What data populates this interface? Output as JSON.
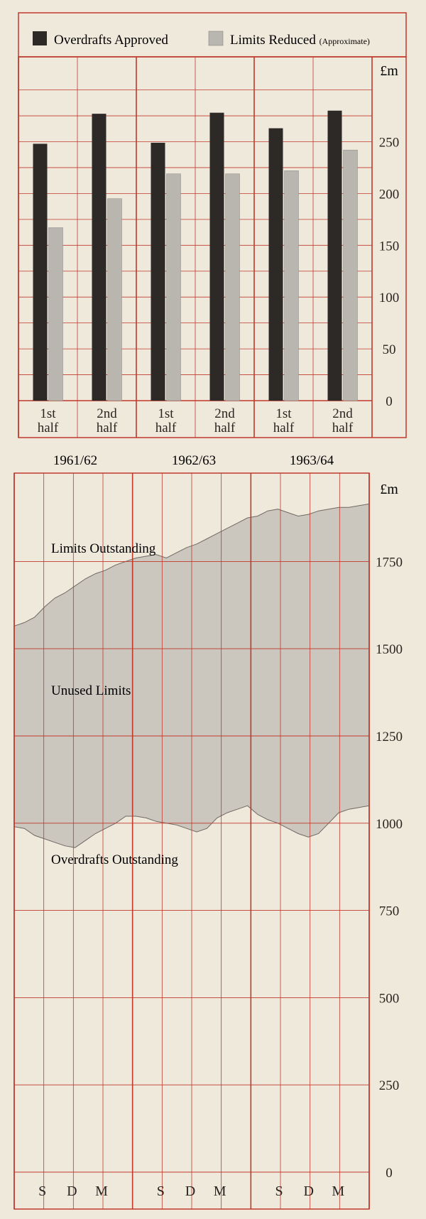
{
  "colors": {
    "background": "#efe9dc",
    "grid": "#c0392b",
    "overdrafts_approved": "#2d2927",
    "limits_reduced": "#b9b5af",
    "unused_area": "#cbc6be",
    "text": "#2a2420"
  },
  "chart_data": [
    {
      "type": "bar",
      "legend": [
        {
          "name": "Overdrafts Approved",
          "qualifier": ""
        },
        {
          "name": "Limits Reduced",
          "qualifier": "(Approximate)"
        }
      ],
      "unit": "£m",
      "ylim": [
        0,
        300
      ],
      "yticks": [
        "250",
        "200",
        "150",
        "100",
        "50",
        "0"
      ],
      "ytick_values": [
        250,
        200,
        150,
        100,
        50,
        0
      ],
      "categories": [
        {
          "line1": "1st",
          "line2": "half"
        },
        {
          "line1": "2nd",
          "line2": "half"
        },
        {
          "line1": "1st",
          "line2": "half"
        },
        {
          "line1": "2nd",
          "line2": "half"
        },
        {
          "line1": "1st",
          "line2": "half"
        },
        {
          "line1": "2nd",
          "line2": "half"
        }
      ],
      "groups": [
        "1961/62",
        "1962/63",
        "1963/64"
      ],
      "series": [
        {
          "name": "Overdrafts Approved",
          "values": [
            248,
            277,
            249,
            278,
            263,
            280
          ]
        },
        {
          "name": "Limits Reduced",
          "values": [
            167,
            195,
            219,
            219,
            222,
            242
          ]
        }
      ],
      "grid": true,
      "legend_position": "top"
    },
    {
      "type": "area",
      "unit": "£m",
      "ylim": [
        0,
        1900
      ],
      "yticks": [
        "1750",
        "1500",
        "1250",
        "1000",
        "750",
        "500",
        "250",
        "0"
      ],
      "ytick_values": [
        1750,
        1500,
        1250,
        1000,
        750,
        500,
        250,
        0
      ],
      "month_labels": [
        "S",
        "D",
        "M",
        "S",
        "D",
        "M",
        "S",
        "D",
        "M"
      ],
      "labels": {
        "upper": "Limits Outstanding",
        "middle": "Unused Limits",
        "lower": "Overdrafts Outstanding"
      },
      "x_months": [
        "Jul 1961",
        "Aug 1961",
        "Sep 1961",
        "Oct 1961",
        "Nov 1961",
        "Dec 1961",
        "Jan 1962",
        "Feb 1962",
        "Mar 1962",
        "Apr 1962",
        "May 1962",
        "Jun 1962",
        "Jul 1962",
        "Aug 1962",
        "Sep 1962",
        "Oct 1962",
        "Nov 1962",
        "Dec 1962",
        "Jan 1963",
        "Feb 1963",
        "Mar 1963",
        "Apr 1963",
        "May 1963",
        "Jun 1963",
        "Jul 1963",
        "Aug 1963",
        "Sep 1963",
        "Oct 1963",
        "Nov 1963",
        "Dec 1963",
        "Jan 1964",
        "Feb 1964",
        "Mar 1964",
        "Apr 1964",
        "May 1964",
        "Jun 1964"
      ],
      "series": [
        {
          "name": "Limits Outstanding",
          "values": [
            1565,
            1575,
            1590,
            1620,
            1645,
            1660,
            1680,
            1700,
            1715,
            1725,
            1740,
            1750,
            1760,
            1765,
            1770,
            1760,
            1775,
            1790,
            1800,
            1815,
            1830,
            1845,
            1860,
            1875,
            1880,
            1895,
            1900,
            1890,
            1880,
            1885,
            1895,
            1900,
            1905,
            1905,
            1910,
            1915
          ]
        },
        {
          "name": "Overdrafts Outstanding",
          "values": [
            990,
            985,
            965,
            955,
            945,
            935,
            930,
            950,
            970,
            985,
            1000,
            1020,
            1020,
            1015,
            1005,
            1000,
            995,
            985,
            975,
            985,
            1015,
            1030,
            1040,
            1050,
            1025,
            1010,
            1000,
            985,
            970,
            960,
            970,
            1000,
            1030,
            1040,
            1045,
            1050
          ]
        }
      ],
      "grid": true
    }
  ]
}
